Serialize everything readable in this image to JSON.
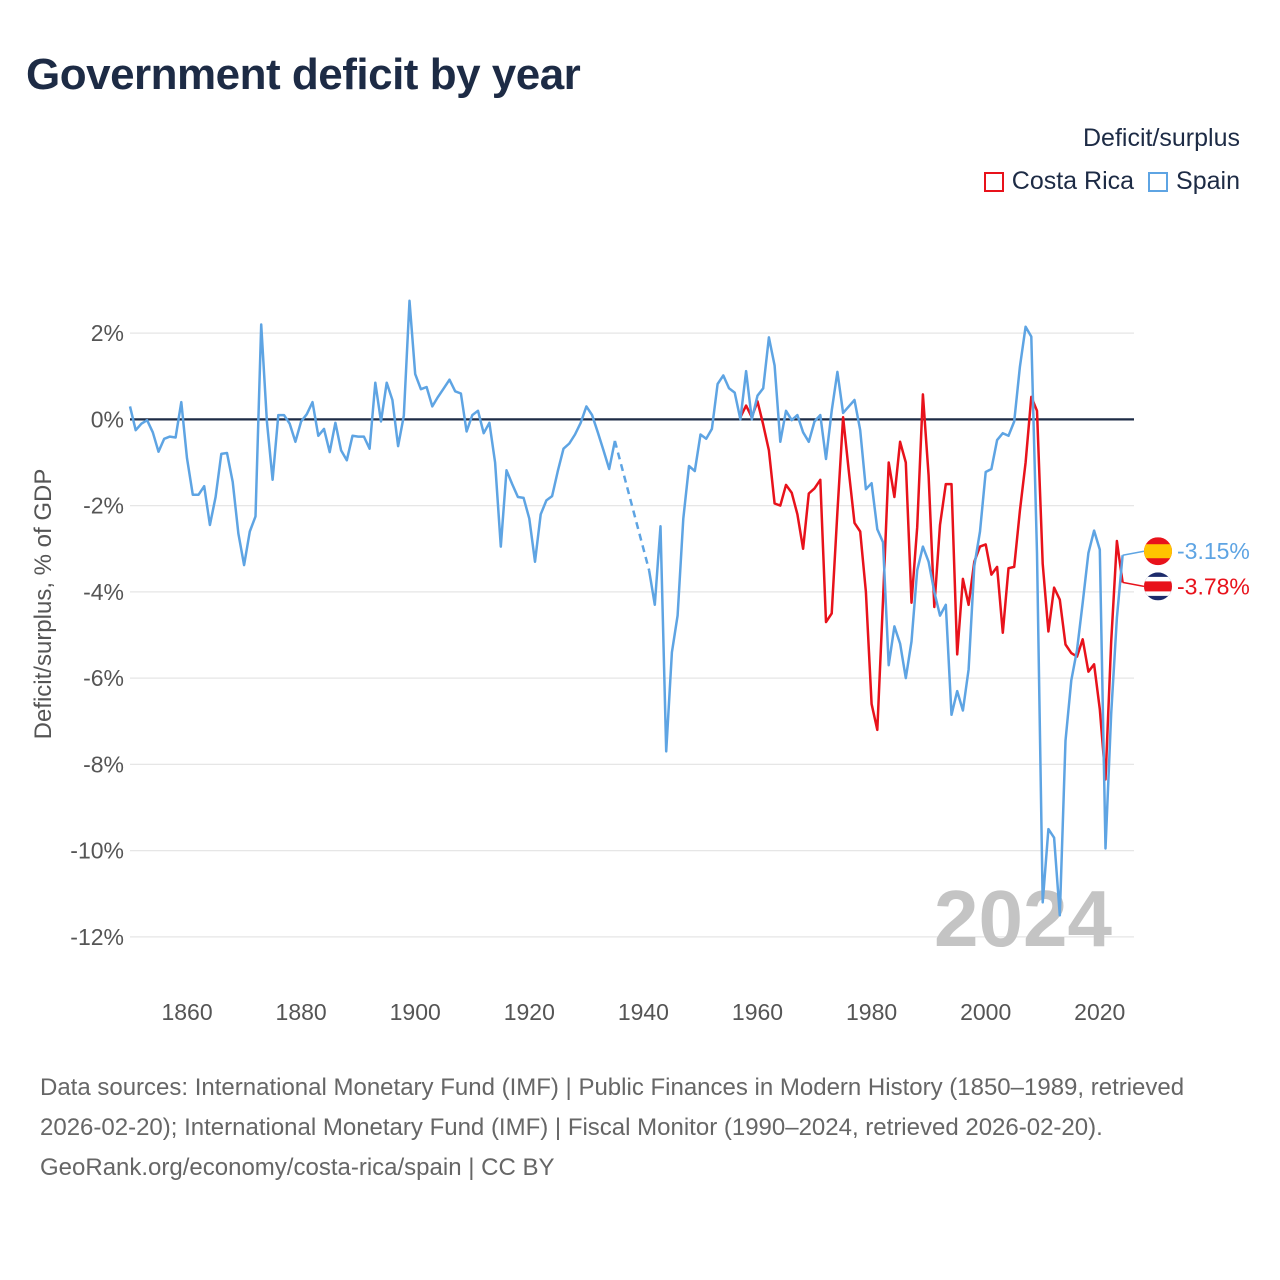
{
  "title": "Government deficit by year",
  "legend": {
    "title": "Deficit/surplus",
    "items": [
      {
        "label": "Costa Rica",
        "color": "#e8121b"
      },
      {
        "label": "Spain",
        "color": "#5ea4e3"
      }
    ]
  },
  "footer": {
    "sources": "Data sources: International Monetary Fund (IMF) | Public Finances in Modern History (1850–1989, retrieved 2026-02-20); International Monetary Fund (IMF) | Fiscal Monitor (1990–2024, retrieved 2026-02-20).",
    "credit": "GeoRank.org/economy/costa-rica/spain | CC BY"
  },
  "chart_data": {
    "type": "line",
    "title": "Government deficit by year",
    "xlabel": "",
    "ylabel": "Deficit/surplus, % of GDP",
    "xlim": [
      1850,
      2026
    ],
    "ylim": [
      -13,
      3
    ],
    "x_ticks": [
      1860,
      1880,
      1900,
      1920,
      1940,
      1960,
      1980,
      2000,
      2020
    ],
    "x_tick_labels": [
      "1860",
      "1880",
      "1900",
      "1920",
      "1940",
      "1960",
      "1980",
      "2000",
      "2020"
    ],
    "y_ticks": [
      2,
      0,
      -2,
      -4,
      -6,
      -8,
      -10,
      -12
    ],
    "y_tick_labels": [
      "2%",
      "0%",
      "-2%",
      "-4%",
      "-6%",
      "-8%",
      "-10%",
      "-12%"
    ],
    "current_year": "2024",
    "series": [
      {
        "name": "Spain",
        "color": "#5ea4e3",
        "end_label": "-3.15%",
        "flag_colors": [
          "#e8121b",
          "#ffc400"
        ],
        "dashed_segments": [
          [
            1935,
            1941
          ]
        ],
        "points": [
          [
            1850,
            0.3
          ],
          [
            1851,
            -0.25
          ],
          [
            1852,
            -0.1
          ],
          [
            1853,
            -0.02
          ],
          [
            1854,
            -0.3
          ],
          [
            1855,
            -0.75
          ],
          [
            1856,
            -0.45
          ],
          [
            1857,
            -0.4
          ],
          [
            1858,
            -0.42
          ],
          [
            1859,
            0.4
          ],
          [
            1860,
            -0.9
          ],
          [
            1861,
            -1.75
          ],
          [
            1862,
            -1.75
          ],
          [
            1863,
            -1.55
          ],
          [
            1864,
            -2.45
          ],
          [
            1865,
            -1.8
          ],
          [
            1866,
            -0.8
          ],
          [
            1867,
            -0.78
          ],
          [
            1868,
            -1.45
          ],
          [
            1869,
            -2.65
          ],
          [
            1870,
            -3.38
          ],
          [
            1871,
            -2.6
          ],
          [
            1872,
            -2.25
          ],
          [
            1873,
            2.2
          ],
          [
            1874,
            -0.05
          ],
          [
            1875,
            -1.4
          ],
          [
            1876,
            0.1
          ],
          [
            1877,
            0.1
          ],
          [
            1878,
            -0.1
          ],
          [
            1879,
            -0.52
          ],
          [
            1880,
            -0.05
          ],
          [
            1881,
            0.12
          ],
          [
            1882,
            0.4
          ],
          [
            1883,
            -0.38
          ],
          [
            1884,
            -0.22
          ],
          [
            1885,
            -0.76
          ],
          [
            1886,
            -0.08
          ],
          [
            1887,
            -0.72
          ],
          [
            1888,
            -0.95
          ],
          [
            1889,
            -0.38
          ],
          [
            1890,
            -0.4
          ],
          [
            1891,
            -0.4
          ],
          [
            1892,
            -0.68
          ],
          [
            1893,
            0.85
          ],
          [
            1894,
            -0.05
          ],
          [
            1895,
            0.85
          ],
          [
            1896,
            0.45
          ],
          [
            1897,
            -0.62
          ],
          [
            1898,
            0.08
          ],
          [
            1899,
            2.75
          ],
          [
            1900,
            1.05
          ],
          [
            1901,
            0.7
          ],
          [
            1902,
            0.75
          ],
          [
            1903,
            0.3
          ],
          [
            1904,
            0.52
          ],
          [
            1905,
            0.72
          ],
          [
            1906,
            0.92
          ],
          [
            1907,
            0.65
          ],
          [
            1908,
            0.6
          ],
          [
            1909,
            -0.28
          ],
          [
            1910,
            0.1
          ],
          [
            1911,
            0.2
          ],
          [
            1912,
            -0.32
          ],
          [
            1913,
            -0.08
          ],
          [
            1914,
            -1.0
          ],
          [
            1915,
            -2.95
          ],
          [
            1916,
            -1.18
          ],
          [
            1917,
            -1.5
          ],
          [
            1918,
            -1.8
          ],
          [
            1919,
            -1.82
          ],
          [
            1920,
            -2.3
          ],
          [
            1921,
            -3.3
          ],
          [
            1922,
            -2.2
          ],
          [
            1923,
            -1.88
          ],
          [
            1924,
            -1.78
          ],
          [
            1925,
            -1.2
          ],
          [
            1926,
            -0.68
          ],
          [
            1927,
            -0.56
          ],
          [
            1928,
            -0.35
          ],
          [
            1929,
            -0.08
          ],
          [
            1930,
            0.3
          ],
          [
            1931,
            0.1
          ],
          [
            1932,
            -0.3
          ],
          [
            1933,
            -0.72
          ],
          [
            1934,
            -1.15
          ],
          [
            1935,
            -0.5
          ],
          [
            1941,
            -3.5
          ],
          [
            1942,
            -4.3
          ],
          [
            1943,
            -2.48
          ],
          [
            1944,
            -7.7
          ],
          [
            1945,
            -5.4
          ],
          [
            1946,
            -4.55
          ],
          [
            1947,
            -2.3
          ],
          [
            1948,
            -1.08
          ],
          [
            1949,
            -1.2
          ],
          [
            1950,
            -0.35
          ],
          [
            1951,
            -0.45
          ],
          [
            1952,
            -0.22
          ],
          [
            1953,
            0.82
          ],
          [
            1954,
            1.02
          ],
          [
            1955,
            0.72
          ],
          [
            1956,
            0.62
          ],
          [
            1957,
            0.0
          ],
          [
            1958,
            1.12
          ],
          [
            1959,
            0.0
          ],
          [
            1960,
            0.55
          ],
          [
            1961,
            0.72
          ],
          [
            1962,
            1.9
          ],
          [
            1963,
            1.25
          ],
          [
            1964,
            -0.52
          ],
          [
            1965,
            0.2
          ],
          [
            1966,
            -0.02
          ],
          [
            1967,
            0.1
          ],
          [
            1968,
            -0.3
          ],
          [
            1969,
            -0.52
          ],
          [
            1970,
            -0.05
          ],
          [
            1971,
            0.1
          ],
          [
            1972,
            -0.92
          ],
          [
            1973,
            0.2
          ],
          [
            1974,
            1.1
          ],
          [
            1975,
            0.15
          ],
          [
            1976,
            0.3
          ],
          [
            1977,
            0.45
          ],
          [
            1978,
            -0.25
          ],
          [
            1979,
            -1.62
          ],
          [
            1980,
            -1.48
          ],
          [
            1981,
            -2.55
          ],
          [
            1982,
            -2.85
          ],
          [
            1983,
            -5.7
          ],
          [
            1984,
            -4.8
          ],
          [
            1985,
            -5.2
          ],
          [
            1986,
            -6.0
          ],
          [
            1987,
            -5.15
          ],
          [
            1988,
            -3.5
          ],
          [
            1989,
            -2.95
          ],
          [
            1990,
            -3.3
          ],
          [
            1991,
            -4.0
          ],
          [
            1992,
            -4.55
          ],
          [
            1993,
            -4.3
          ],
          [
            1994,
            -6.85
          ],
          [
            1995,
            -6.3
          ],
          [
            1996,
            -6.75
          ],
          [
            1997,
            -5.8
          ],
          [
            1998,
            -3.4
          ],
          [
            1999,
            -2.6
          ],
          [
            2000,
            -1.22
          ],
          [
            2001,
            -1.15
          ],
          [
            2002,
            -0.48
          ],
          [
            2003,
            -0.32
          ],
          [
            2004,
            -0.38
          ],
          [
            2005,
            -0.05
          ],
          [
            2006,
            1.22
          ],
          [
            2007,
            2.15
          ],
          [
            2008,
            1.92
          ],
          [
            2009,
            -3.1
          ],
          [
            2010,
            -11.2
          ],
          [
            2011,
            -9.5
          ],
          [
            2012,
            -9.7
          ],
          [
            2013,
            -11.5
          ],
          [
            2014,
            -7.45
          ],
          [
            2015,
            -6.05
          ],
          [
            2016,
            -5.35
          ],
          [
            2017,
            -4.25
          ],
          [
            2018,
            -3.1
          ],
          [
            2019,
            -2.58
          ],
          [
            2020,
            -3.02
          ],
          [
            2021,
            -9.95
          ],
          [
            2022,
            -6.82
          ],
          [
            2023,
            -4.6
          ],
          [
            2024,
            -3.15
          ]
        ]
      },
      {
        "name": "Costa Rica",
        "color": "#e8121b",
        "end_label": "-3.78%",
        "flag_colors": [
          "#1d2b6b",
          "#ffffff",
          "#e8121b"
        ],
        "dashed_segments": [],
        "points": [
          [
            1957,
            0.05
          ],
          [
            1958,
            0.32
          ],
          [
            1959,
            0.05
          ],
          [
            1960,
            0.42
          ],
          [
            1961,
            -0.12
          ],
          [
            1962,
            -0.72
          ],
          [
            1963,
            -1.95
          ],
          [
            1964,
            -2.0
          ],
          [
            1965,
            -1.52
          ],
          [
            1966,
            -1.7
          ],
          [
            1967,
            -2.2
          ],
          [
            1968,
            -3.0
          ],
          [
            1969,
            -1.72
          ],
          [
            1970,
            -1.6
          ],
          [
            1971,
            -1.4
          ],
          [
            1972,
            -4.7
          ],
          [
            1973,
            -4.5
          ],
          [
            1974,
            -2.15
          ],
          [
            1975,
            0.05
          ],
          [
            1976,
            -1.2
          ],
          [
            1977,
            -2.4
          ],
          [
            1978,
            -2.6
          ],
          [
            1979,
            -4.0
          ],
          [
            1980,
            -6.6
          ],
          [
            1981,
            -7.2
          ],
          [
            1982,
            -4.2
          ],
          [
            1983,
            -1.0
          ],
          [
            1984,
            -1.8
          ],
          [
            1985,
            -0.52
          ],
          [
            1986,
            -1.0
          ],
          [
            1987,
            -4.25
          ],
          [
            1988,
            -2.5
          ],
          [
            1989,
            0.58
          ],
          [
            1990,
            -1.3
          ],
          [
            1991,
            -4.35
          ],
          [
            1992,
            -2.45
          ],
          [
            1993,
            -1.5
          ],
          [
            1994,
            -1.5
          ],
          [
            1995,
            -5.45
          ],
          [
            1996,
            -3.7
          ],
          [
            1997,
            -4.3
          ],
          [
            1998,
            -3.3
          ],
          [
            1999,
            -2.95
          ],
          [
            2000,
            -2.9
          ],
          [
            2001,
            -3.6
          ],
          [
            2002,
            -3.42
          ],
          [
            2003,
            -4.95
          ],
          [
            2004,
            -3.45
          ],
          [
            2005,
            -3.42
          ],
          [
            2006,
            -2.12
          ],
          [
            2007,
            -1.0
          ],
          [
            2008,
            0.52
          ],
          [
            2009,
            0.2
          ],
          [
            2010,
            -3.35
          ],
          [
            2011,
            -4.92
          ],
          [
            2012,
            -3.9
          ],
          [
            2013,
            -4.18
          ],
          [
            2014,
            -5.22
          ],
          [
            2015,
            -5.42
          ],
          [
            2016,
            -5.5
          ],
          [
            2017,
            -5.1
          ],
          [
            2018,
            -5.85
          ],
          [
            2019,
            -5.68
          ],
          [
            2020,
            -6.72
          ],
          [
            2021,
            -8.35
          ],
          [
            2022,
            -5.15
          ],
          [
            2023,
            -2.82
          ],
          [
            2024,
            -3.78
          ]
        ]
      }
    ]
  }
}
